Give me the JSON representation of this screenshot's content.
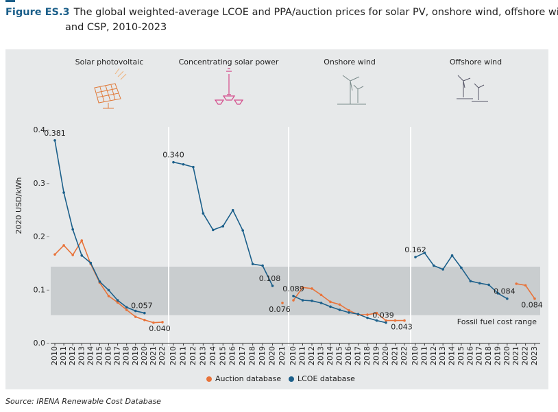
{
  "header": {
    "figure": "Figure ES.3",
    "title": "The global weighted-average LCOE and PPA/auction prices for solar PV, onshore wind, offshore wind",
    "title_line2": "and CSP, 2010-2023"
  },
  "y_axis_label": "2020 USD/kWh",
  "fossil_fuel_range": {
    "label": "Fossil fuel cost range",
    "range": [
      0.053,
      0.144
    ]
  },
  "source": "Source: IRENA Renewable Cost Database",
  "chart_data": [
    {
      "type": "line",
      "title": "Solar photovoltaic",
      "categories": [
        "2010",
        "2011",
        "2012",
        "2013",
        "2014",
        "2015",
        "2016",
        "2017",
        "2018",
        "2019",
        "2020",
        "2021",
        "2022"
      ],
      "ylim": [
        0,
        0.4
      ],
      "yticks": [
        {
          "value": 0,
          "label": "0.0"
        },
        0.1,
        0.2,
        0.3,
        0.4
      ],
      "series": [
        {
          "name": "Auction database",
          "color": "#e8733a",
          "values": [
            0.167,
            0.184,
            0.166,
            0.193,
            0.149,
            0.114,
            0.089,
            0.077,
            0.063,
            0.05,
            0.044,
            0.039,
            0.04
          ],
          "value_labels": [
            null,
            null,
            null,
            null,
            null,
            null,
            null,
            null,
            null,
            null,
            null,
            null,
            "0.040"
          ]
        },
        {
          "name": "LCOE database",
          "color": "#1b5f8a",
          "values": [
            0.381,
            0.283,
            0.214,
            0.165,
            0.151,
            0.116,
            0.1,
            0.081,
            0.068,
            0.061,
            0.057,
            null,
            null
          ],
          "value_labels": [
            "0.381",
            null,
            null,
            null,
            null,
            null,
            null,
            null,
            null,
            null,
            "0.057",
            null,
            null
          ]
        }
      ]
    },
    {
      "type": "line",
      "title": "Concentrating solar power",
      "categories": [
        "2010",
        "2011",
        "2012",
        "2013",
        "2014",
        "2015",
        "2016",
        "2017",
        "2018",
        "2019",
        "2020",
        "2021"
      ],
      "ylim": [
        0,
        0.4
      ],
      "series": [
        {
          "name": "Auction database",
          "color": "#e8733a",
          "values": [
            null,
            null,
            null,
            null,
            null,
            null,
            null,
            null,
            null,
            null,
            null,
            0.076
          ],
          "value_labels": [
            null,
            null,
            null,
            null,
            null,
            null,
            null,
            null,
            null,
            null,
            null,
            "0.076"
          ]
        },
        {
          "name": "LCOE database",
          "color": "#1b5f8a",
          "values": [
            0.34,
            0.336,
            0.331,
            0.244,
            0.213,
            0.22,
            0.25,
            0.212,
            0.149,
            0.146,
            0.108,
            null
          ],
          "value_labels": [
            "0.340",
            null,
            null,
            null,
            null,
            null,
            null,
            null,
            null,
            null,
            "0.108",
            null
          ]
        }
      ]
    },
    {
      "type": "line",
      "title": "Onshore wind",
      "categories": [
        "2010",
        "2011",
        "2012",
        "2013",
        "2014",
        "2015",
        "2016",
        "2017",
        "2018",
        "2019",
        "2020",
        "2021",
        "2022"
      ],
      "ylim": [
        0,
        0.4
      ],
      "series": [
        {
          "name": "Auction database",
          "color": "#e8733a",
          "values": [
            0.081,
            0.105,
            0.103,
            0.091,
            0.078,
            0.073,
            0.062,
            0.054,
            0.054,
            0.057,
            0.043,
            0.043,
            0.043
          ],
          "value_labels": [
            null,
            null,
            null,
            null,
            null,
            null,
            null,
            null,
            null,
            null,
            null,
            null,
            "0.043"
          ]
        },
        {
          "name": "LCOE database",
          "color": "#1b5f8a",
          "values": [
            0.089,
            0.081,
            0.08,
            0.076,
            0.069,
            0.063,
            0.058,
            0.055,
            0.048,
            0.043,
            0.039,
            null,
            null
          ],
          "value_labels": [
            "0.089",
            null,
            null,
            null,
            null,
            null,
            null,
            null,
            null,
            null,
            "0.039",
            null,
            null
          ]
        }
      ]
    },
    {
      "type": "line",
      "title": "Offshore wind",
      "categories": [
        "2010",
        "2011",
        "2012",
        "2013",
        "2014",
        "2015",
        "2016",
        "2017",
        "2018",
        "2019",
        "2020",
        "2021",
        "2022",
        "2023"
      ],
      "ylim": [
        0,
        0.4
      ],
      "series": [
        {
          "name": "Auction database",
          "color": "#e8733a",
          "values": [
            null,
            null,
            null,
            null,
            null,
            null,
            null,
            null,
            null,
            null,
            null,
            0.112,
            0.109,
            0.084
          ],
          "value_labels": [
            null,
            null,
            null,
            null,
            null,
            null,
            null,
            null,
            null,
            null,
            null,
            null,
            null,
            "0.084"
          ]
        },
        {
          "name": "LCOE database",
          "color": "#1b5f8a",
          "values": [
            0.162,
            0.17,
            0.146,
            0.139,
            0.165,
            0.142,
            0.117,
            0.113,
            0.11,
            0.094,
            0.084,
            null,
            null,
            null
          ],
          "value_labels": [
            "0.162",
            null,
            null,
            null,
            null,
            null,
            null,
            null,
            null,
            null,
            "0.084",
            null,
            null,
            null
          ]
        }
      ]
    }
  ]
}
